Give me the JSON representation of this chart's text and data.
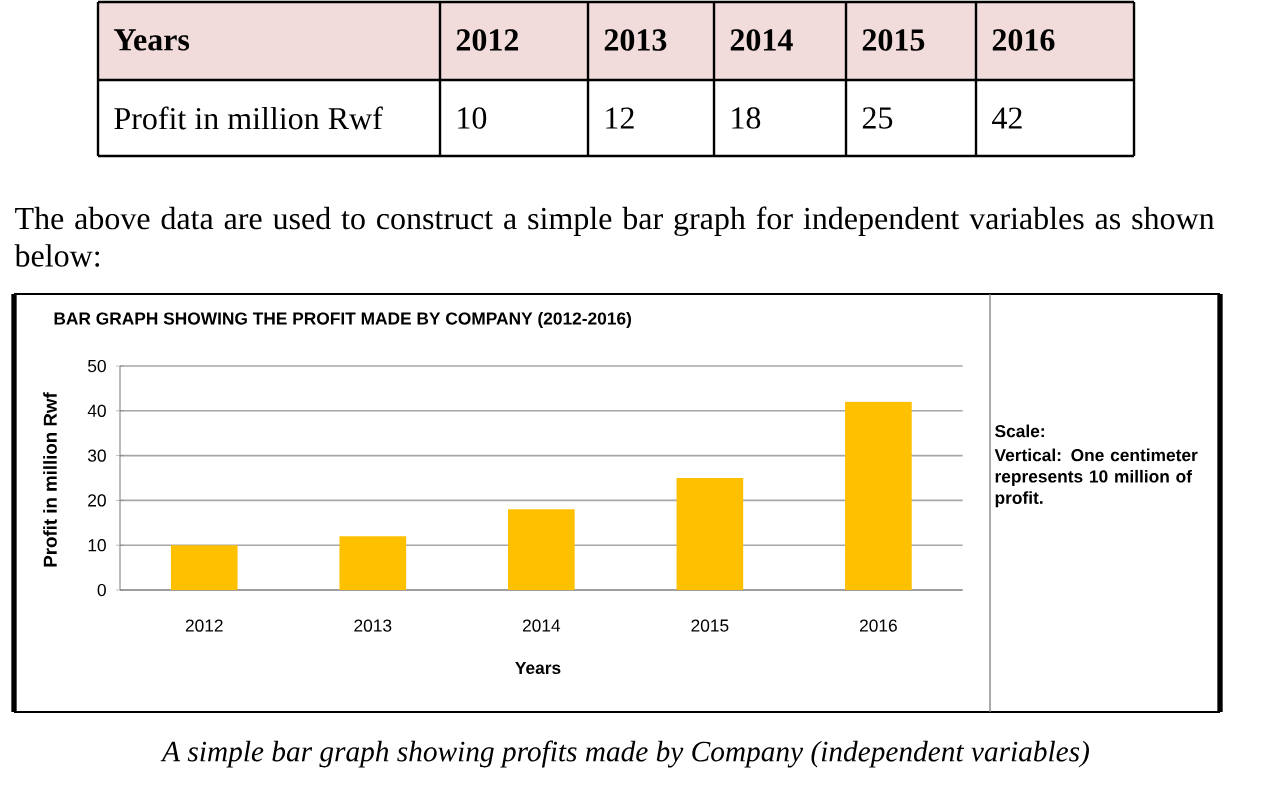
{
  "chart_data": {
    "type": "bar",
    "title": "BAR GRAPH SHOWING THE PROFIT MADE BY COMPANY (2012-2016)",
    "xlabel": "Years",
    "ylabel": "Profit in million Rwf",
    "categories": [
      "2012",
      "2013",
      "2014",
      "2015",
      "2016"
    ],
    "values": [
      10,
      12,
      18,
      25,
      42
    ],
    "color": "#ffc000",
    "ylim": [
      0,
      50
    ],
    "yticks": [
      0,
      10,
      20,
      30,
      40,
      50
    ],
    "grid": "y",
    "annotations": [
      "The above data are used to construct a simple bar graph for independent variables as shown below:",
      "Scale:",
      "Vertical: One centimeter represents 10 million of profit.",
      "A simple bar graph showing profits made by Company (independent variables)",
      "10",
      "12",
      "18",
      "25",
      "42"
    ]
  }
}
